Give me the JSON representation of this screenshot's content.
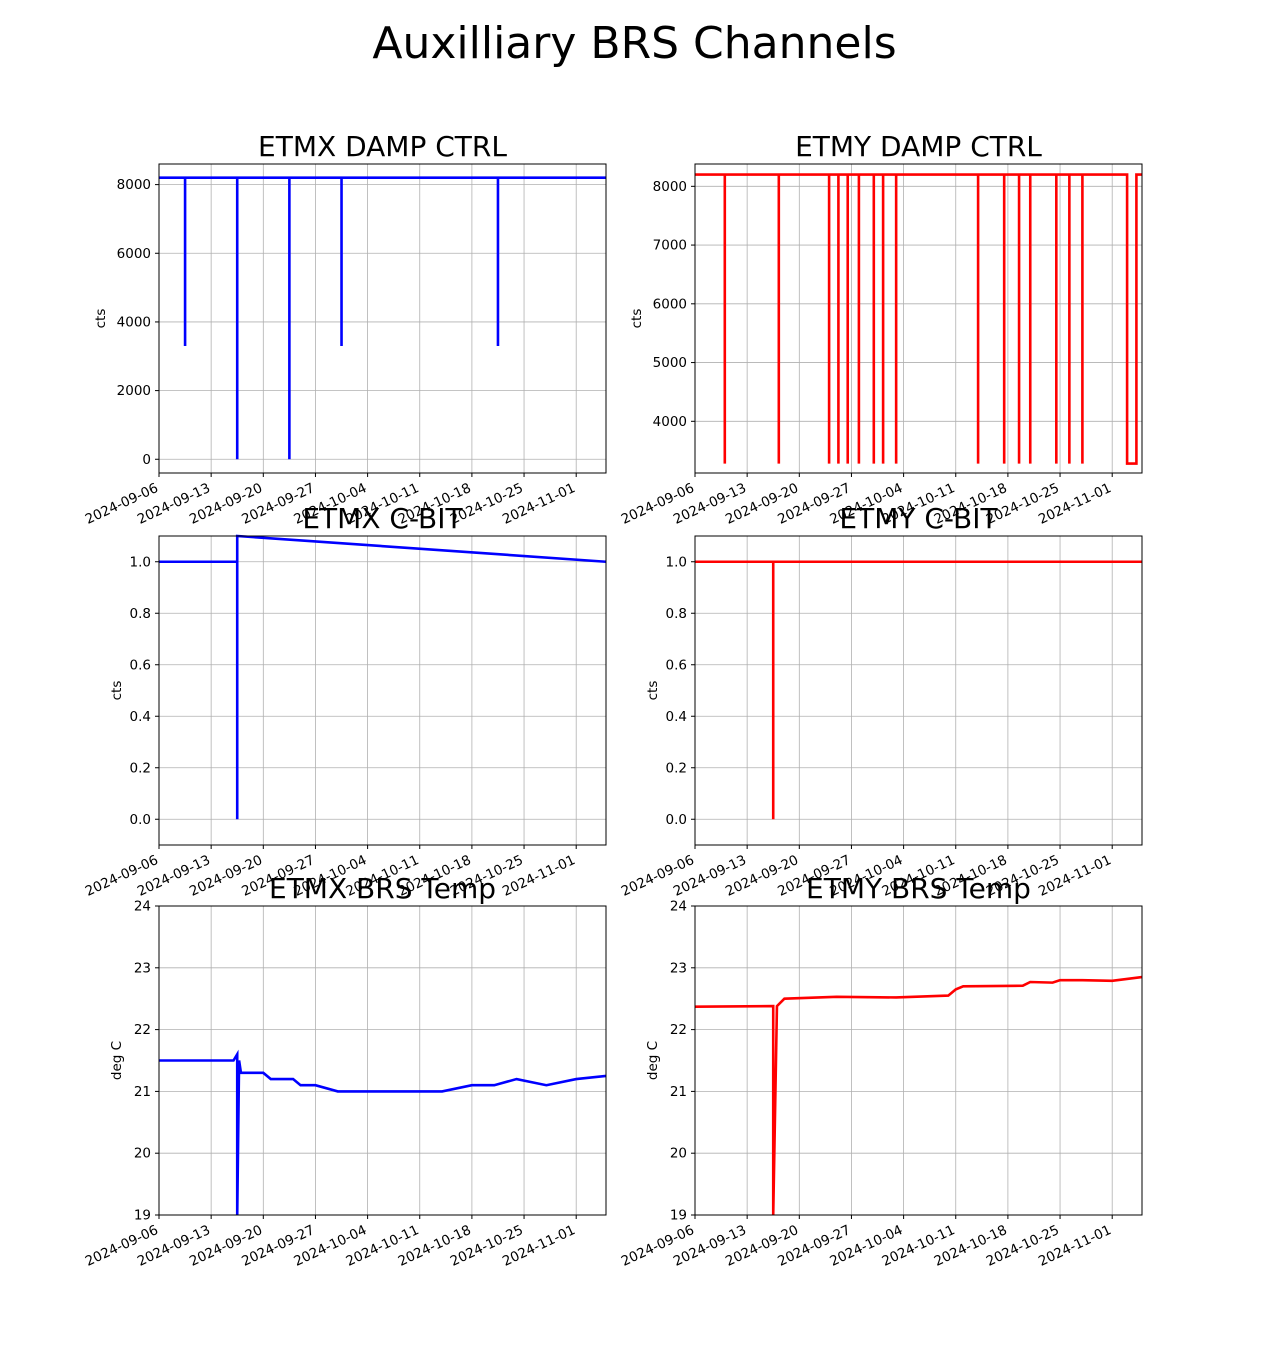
{
  "figure": {
    "title": "Auxilliary BRS Channels"
  },
  "chart_data": [
    {
      "id": "etmx-damp",
      "type": "line",
      "title": "ETMX DAMP CTRL",
      "xlabel": "",
      "ylabel": "cts",
      "color": "#0000ff",
      "grid": true,
      "xlim": [
        "2024-09-06",
        "2024-11-05"
      ],
      "ylim": [
        -400,
        8600
      ],
      "xticks": [
        "2024-09-06",
        "2024-09-13",
        "2024-09-20",
        "2024-09-27",
        "2024-10-04",
        "2024-10-11",
        "2024-10-18",
        "2024-10-25",
        "2024-11-01"
      ],
      "yticks": [
        0,
        2000,
        4000,
        6000,
        8000
      ],
      "x": [
        "2024-09-06",
        "2024-09-09T12",
        "2024-09-09T12",
        "2024-09-09T12",
        "2024-09-16T12",
        "2024-09-16T12",
        "2024-09-16T12",
        "2024-09-23T12",
        "2024-09-23T12",
        "2024-09-23T12",
        "2024-09-30T12",
        "2024-09-30T12",
        "2024-09-30T12",
        "2024-10-21T12",
        "2024-10-21T12",
        "2024-10-21T12",
        "2024-11-05"
      ],
      "y": [
        8200,
        8200,
        3300,
        8200,
        8200,
        0,
        8200,
        8200,
        0,
        8200,
        8200,
        3300,
        8200,
        8200,
        3300,
        8200,
        8200
      ]
    },
    {
      "id": "etmy-damp",
      "type": "line",
      "title": "ETMY DAMP CTRL",
      "xlabel": "",
      "ylabel": "cts",
      "color": "#ff0000",
      "grid": true,
      "xlim": [
        "2024-09-06",
        "2024-11-05"
      ],
      "ylim": [
        3120,
        8380
      ],
      "xticks": [
        "2024-09-06",
        "2024-09-13",
        "2024-09-20",
        "2024-09-27",
        "2024-10-04",
        "2024-10-11",
        "2024-10-18",
        "2024-10-25",
        "2024-11-01"
      ],
      "yticks": [
        4000,
        5000,
        6000,
        7000,
        8000
      ],
      "x": [
        "2024-09-06",
        "2024-09-10",
        "2024-09-10",
        "2024-09-10",
        "2024-09-17T06",
        "2024-09-17T06",
        "2024-09-17T06",
        "2024-09-24",
        "2024-09-24",
        "2024-09-24",
        "2024-09-25T06",
        "2024-09-25T06",
        "2024-09-25T06",
        "2024-09-26T12",
        "2024-09-26T12",
        "2024-09-26T12",
        "2024-09-28",
        "2024-09-28",
        "2024-09-28",
        "2024-09-30",
        "2024-09-30",
        "2024-09-30",
        "2024-10-01T06",
        "2024-10-01T06",
        "2024-10-01T06",
        "2024-10-03",
        "2024-10-03",
        "2024-10-03",
        "2024-10-14",
        "2024-10-14",
        "2024-10-14",
        "2024-10-17T12",
        "2024-10-17T12",
        "2024-10-17T12",
        "2024-10-19T12",
        "2024-10-19T12",
        "2024-10-19T12",
        "2024-10-21",
        "2024-10-21",
        "2024-10-21",
        "2024-10-24T12",
        "2024-10-24T12",
        "2024-10-24T12",
        "2024-10-26T06",
        "2024-10-26T06",
        "2024-10-26T06",
        "2024-10-28",
        "2024-10-28",
        "2024-10-28",
        "2024-11-03",
        "2024-11-03",
        "2024-11-04T06",
        "2024-11-04T06",
        "2024-11-05"
      ],
      "y": [
        8200,
        8200,
        3280,
        8200,
        8200,
        3280,
        8200,
        8200,
        3280,
        8200,
        8200,
        3280,
        8200,
        8200,
        3280,
        8200,
        8200,
        3280,
        8200,
        8200,
        3280,
        8200,
        8200,
        3280,
        8200,
        8200,
        3280,
        8200,
        8200,
        3280,
        8200,
        8200,
        3280,
        8200,
        8200,
        3280,
        8200,
        8200,
        3280,
        8200,
        8200,
        3280,
        8200,
        8200,
        3280,
        8200,
        8200,
        3280,
        8200,
        8200,
        3280,
        3280,
        8200,
        8200
      ]
    },
    {
      "id": "etmx-cbit",
      "type": "line",
      "title": "ETMX C-BIT",
      "xlabel": "",
      "ylabel": "cts",
      "color": "#0000ff",
      "grid": true,
      "xlim": [
        "2024-09-06",
        "2024-11-05"
      ],
      "ylim": [
        -0.1,
        1.1
      ],
      "xticks": [
        "2024-09-06",
        "2024-09-13",
        "2024-09-20",
        "2024-09-27",
        "2024-10-04",
        "2024-10-11",
        "2024-10-18",
        "2024-10-25",
        "2024-11-01"
      ],
      "yticks": [
        0.0,
        0.2,
        0.4,
        0.6,
        0.8,
        1.0
      ],
      "x": [
        "2024-09-06",
        "2024-09-16T12",
        "2024-09-16T12",
        "2024-09-16T12",
        "2024-11-05"
      ],
      "y": [
        1,
        1,
        0,
        1.1,
        1
      ]
    },
    {
      "id": "etmy-cbit",
      "type": "line",
      "title": "ETMY C-BIT",
      "xlabel": "",
      "ylabel": "cts",
      "color": "#ff0000",
      "grid": true,
      "xlim": [
        "2024-09-06",
        "2024-11-05"
      ],
      "ylim": [
        -0.1,
        1.1
      ],
      "xticks": [
        "2024-09-06",
        "2024-09-13",
        "2024-09-20",
        "2024-09-27",
        "2024-10-04",
        "2024-10-11",
        "2024-10-18",
        "2024-10-25",
        "2024-11-01"
      ],
      "yticks": [
        0.0,
        0.2,
        0.4,
        0.6,
        0.8,
        1.0
      ],
      "x": [
        "2024-09-06",
        "2024-09-16T12",
        "2024-09-16T12",
        "2024-09-16T12",
        "2024-11-05"
      ],
      "y": [
        1,
        1,
        0,
        1,
        1
      ]
    },
    {
      "id": "etmx-temp",
      "type": "line",
      "title": "ETMX BRS Temp",
      "xlabel": "",
      "ylabel": "deg C",
      "color": "#0000ff",
      "grid": true,
      "xlim": [
        "2024-09-06",
        "2024-11-05"
      ],
      "ylim": [
        19,
        24
      ],
      "xticks": [
        "2024-09-06",
        "2024-09-13",
        "2024-09-20",
        "2024-09-27",
        "2024-10-04",
        "2024-10-11",
        "2024-10-18",
        "2024-10-25",
        "2024-11-01"
      ],
      "yticks": [
        19,
        20,
        21,
        22,
        23,
        24
      ],
      "x": [
        "2024-09-06",
        "2024-09-16",
        "2024-09-16T12",
        "2024-09-16T12",
        "2024-09-16T18",
        "2024-09-17",
        "2024-09-20",
        "2024-09-21",
        "2024-09-24",
        "2024-09-25",
        "2024-09-27",
        "2024-09-30",
        "2024-10-04",
        "2024-10-07",
        "2024-10-11",
        "2024-10-14",
        "2024-10-18",
        "2024-10-21",
        "2024-10-24",
        "2024-10-28",
        "2024-11-01",
        "2024-11-05"
      ],
      "y": [
        21.5,
        21.5,
        21.6,
        19.0,
        21.5,
        21.3,
        21.3,
        21.2,
        21.2,
        21.1,
        21.1,
        21.0,
        21.0,
        21.0,
        21.0,
        21.0,
        21.1,
        21.1,
        21.2,
        21.1,
        21.2,
        21.25
      ]
    },
    {
      "id": "etmy-temp",
      "type": "line",
      "title": "ETMY BRS Temp",
      "xlabel": "",
      "ylabel": "deg C",
      "color": "#ff0000",
      "grid": true,
      "xlim": [
        "2024-09-06",
        "2024-11-05"
      ],
      "ylim": [
        19,
        24
      ],
      "xticks": [
        "2024-09-06",
        "2024-09-13",
        "2024-09-20",
        "2024-09-27",
        "2024-10-04",
        "2024-10-11",
        "2024-10-18",
        "2024-10-25",
        "2024-11-01"
      ],
      "yticks": [
        19,
        20,
        21,
        22,
        23,
        24
      ],
      "x": [
        "2024-09-06",
        "2024-09-16T12",
        "2024-09-16T12",
        "2024-09-16T12",
        "2024-09-17",
        "2024-09-18",
        "2024-09-25",
        "2024-10-03",
        "2024-10-10",
        "2024-10-11",
        "2024-10-12",
        "2024-10-20",
        "2024-10-21",
        "2024-10-24",
        "2024-10-25",
        "2024-10-28",
        "2024-11-01",
        "2024-11-05"
      ],
      "y": [
        22.37,
        22.38,
        22.38,
        19.0,
        22.38,
        22.5,
        22.53,
        22.52,
        22.55,
        22.65,
        22.7,
        22.71,
        22.77,
        22.76,
        22.8,
        22.8,
        22.79,
        22.85
      ]
    }
  ]
}
